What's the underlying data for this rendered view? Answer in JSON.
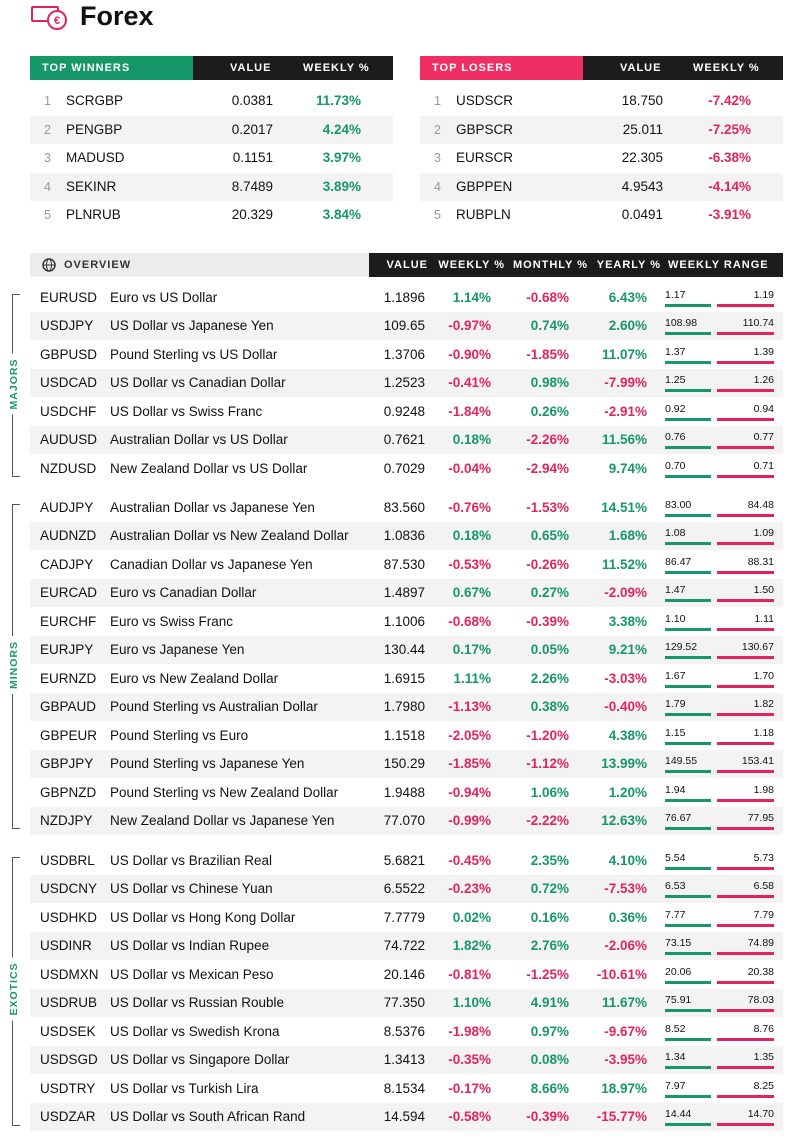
{
  "header": {
    "title": "Forex"
  },
  "top_winners": {
    "columns": [
      "TOP WINNERS",
      "VALUE",
      "WEEKLY %"
    ],
    "rows": [
      [
        "1",
        "SCRGBP",
        "0.0381",
        "11.73%"
      ],
      [
        "2",
        "PENGBP",
        "0.2017",
        "4.24%"
      ],
      [
        "3",
        "MADUSD",
        "0.1151",
        "3.97%"
      ],
      [
        "4",
        "SEKINR",
        "8.7489",
        "3.89%"
      ],
      [
        "5",
        "PLNRUB",
        "20.329",
        "3.84%"
      ]
    ]
  },
  "top_losers": {
    "columns": [
      "TOP LOSERS",
      "VALUE",
      "WEEKLY %"
    ],
    "rows": [
      [
        "1",
        "USDSCR",
        "18.750",
        "-7.42%"
      ],
      [
        "2",
        "GBPSCR",
        "25.011",
        "-7.25%"
      ],
      [
        "3",
        "EURSCR",
        "22.305",
        "-6.38%"
      ],
      [
        "4",
        "GBPPEN",
        "4.9543",
        "-4.14%"
      ],
      [
        "5",
        "RUBPLN",
        "0.0491",
        "-3.91%"
      ]
    ]
  },
  "overview": {
    "columns": [
      "OVERVIEW",
      "VALUE",
      "WEEKLY %",
      "MONTHLY %",
      "YEARLY %",
      "WEEKLY RANGE"
    ],
    "groups": [
      {
        "name": "MAJORS",
        "rows": [
          [
            "EURUSD",
            "Euro vs US Dollar",
            "1.1896",
            "1.14%",
            "-0.68%",
            "6.43%",
            "1.17",
            "1.19"
          ],
          [
            "USDJPY",
            "US Dollar vs Japanese Yen",
            "109.65",
            "-0.97%",
            "0.74%",
            "2.60%",
            "108.98",
            "110.74"
          ],
          [
            "GBPUSD",
            "Pound Sterling vs US Dollar",
            "1.3706",
            "-0.90%",
            "-1.85%",
            "11.07%",
            "1.37",
            "1.39"
          ],
          [
            "USDCAD",
            "US Dollar vs Canadian Dollar",
            "1.2523",
            "-0.41%",
            "0.98%",
            "-7.99%",
            "1.25",
            "1.26"
          ],
          [
            "USDCHF",
            "US Dollar vs Swiss Franc",
            "0.9248",
            "-1.84%",
            "0.26%",
            "-2.91%",
            "0.92",
            "0.94"
          ],
          [
            "AUDUSD",
            "Australian Dollar vs US Dollar",
            "0.7621",
            "0.18%",
            "-2.26%",
            "11.56%",
            "0.76",
            "0.77"
          ],
          [
            "NZDUSD",
            "New Zealand Dollar vs US Dollar",
            "0.7029",
            "-0.04%",
            "-2.94%",
            "9.74%",
            "0.70",
            "0.71"
          ]
        ]
      },
      {
        "name": "MINORS",
        "rows": [
          [
            "AUDJPY",
            "Australian Dollar vs Japanese Yen",
            "83.560",
            "-0.76%",
            "-1.53%",
            "14.51%",
            "83.00",
            "84.48"
          ],
          [
            "AUDNZD",
            "Australian Dollar vs New Zealand Dollar",
            "1.0836",
            "0.18%",
            "0.65%",
            "1.68%",
            "1.08",
            "1.09"
          ],
          [
            "CADJPY",
            "Canadian Dollar vs Japanese Yen",
            "87.530",
            "-0.53%",
            "-0.26%",
            "11.52%",
            "86.47",
            "88.31"
          ],
          [
            "EURCAD",
            "Euro vs Canadian Dollar",
            "1.4897",
            "0.67%",
            "0.27%",
            "-2.09%",
            "1.47",
            "1.50"
          ],
          [
            "EURCHF",
            "Euro vs Swiss Franc",
            "1.1006",
            "-0.68%",
            "-0.39%",
            "3.38%",
            "1.10",
            "1.11"
          ],
          [
            "EURJPY",
            "Euro vs Japanese Yen",
            "130.44",
            "0.17%",
            "0.05%",
            "9.21%",
            "129.52",
            "130.67"
          ],
          [
            "EURNZD",
            "Euro vs New Zealand Dollar",
            "1.6915",
            "1.11%",
            "2.26%",
            "-3.03%",
            "1.67",
            "1.70"
          ],
          [
            "GBPAUD",
            "Pound Sterling vs Australian Dollar",
            "1.7980",
            "-1.13%",
            "0.38%",
            "-0.40%",
            "1.79",
            "1.82"
          ],
          [
            "GBPEUR",
            "Pound Sterling vs Euro",
            "1.1518",
            "-2.05%",
            "-1.20%",
            "4.38%",
            "1.15",
            "1.18"
          ],
          [
            "GBPJPY",
            "Pound Sterling vs Japanese Yen",
            "150.29",
            "-1.85%",
            "-1.12%",
            "13.99%",
            "149.55",
            "153.41"
          ],
          [
            "GBPNZD",
            "Pound Sterling vs New Zealand Dollar",
            "1.9488",
            "-0.94%",
            "1.06%",
            "1.20%",
            "1.94",
            "1.98"
          ],
          [
            "NZDJPY",
            "New Zealand Dollar vs Japanese Yen",
            "77.070",
            "-0.99%",
            "-2.22%",
            "12.63%",
            "76.67",
            "77.95"
          ]
        ]
      },
      {
        "name": "EXOTICS",
        "rows": [
          [
            "USDBRL",
            "US Dollar vs Brazilian Real",
            "5.6821",
            "-0.45%",
            "2.35%",
            "4.10%",
            "5.54",
            "5.73"
          ],
          [
            "USDCNY",
            "US Dollar vs Chinese Yuan",
            "6.5522",
            "-0.23%",
            "0.72%",
            "-7.53%",
            "6.53",
            "6.58"
          ],
          [
            "USDHKD",
            "US Dollar vs Hong Kong Dollar",
            "7.7779",
            "0.02%",
            "0.16%",
            "0.36%",
            "7.77",
            "7.79"
          ],
          [
            "USDINR",
            "US Dollar vs Indian Rupee",
            "74.722",
            "1.82%",
            "2.76%",
            "-2.06%",
            "73.15",
            "74.89"
          ],
          [
            "USDMXN",
            "US Dollar vs Mexican Peso",
            "20.146",
            "-0.81%",
            "-1.25%",
            "-10.61%",
            "20.06",
            "20.38"
          ],
          [
            "USDRUB",
            "US Dollar vs Russian Rouble",
            "77.350",
            "1.10%",
            "4.91%",
            "11.67%",
            "75.91",
            "78.03"
          ],
          [
            "USDSEK",
            "US Dollar vs Swedish Krona",
            "8.5376",
            "-1.98%",
            "0.97%",
            "-9.67%",
            "8.52",
            "8.76"
          ],
          [
            "USDSGD",
            "US Dollar vs Singapore Dollar",
            "1.3413",
            "-0.35%",
            "0.08%",
            "-3.95%",
            "1.34",
            "1.35"
          ],
          [
            "USDTRY",
            "US Dollar vs Turkish Lira",
            "8.1534",
            "-0.17%",
            "8.66%",
            "18.97%",
            "7.97",
            "8.25"
          ],
          [
            "USDZAR",
            "US Dollar vs South African Rand",
            "14.594",
            "-0.58%",
            "-0.39%",
            "-15.77%",
            "14.44",
            "14.70"
          ]
        ]
      }
    ]
  }
}
